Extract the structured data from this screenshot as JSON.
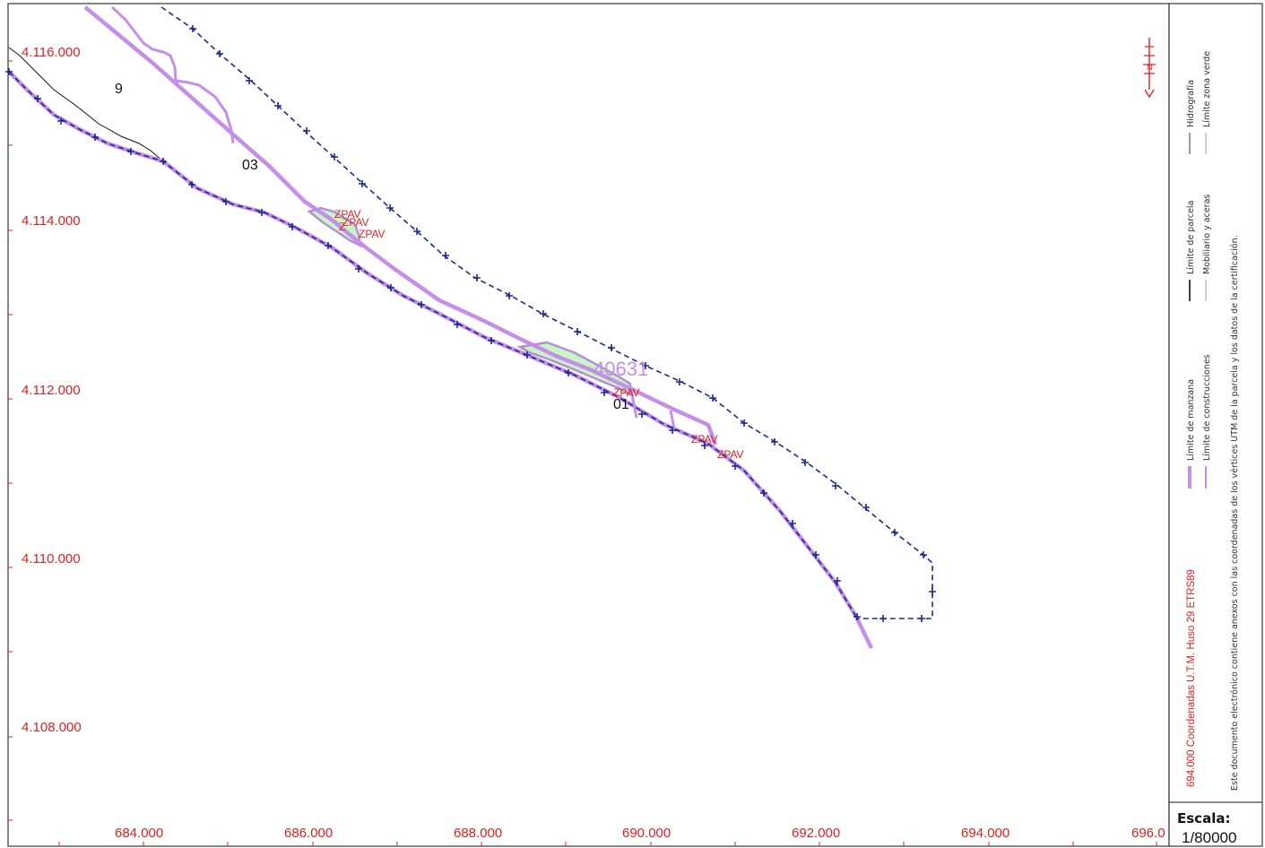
{
  "axes": {
    "y_labels": [
      "4.116.000",
      "4.114.000",
      "4.112.000",
      "4.110.000",
      "4.108.000"
    ],
    "x_labels": [
      "684.000",
      "686.000",
      "688.000",
      "690.000",
      "692.000",
      "694.000",
      "696.0"
    ]
  },
  "map_labels": {
    "zone_9": "9",
    "zone_03": "03",
    "zone_01": "01",
    "parcel_id": "40631",
    "zpav": "ZPAV",
    "zpav_partial": "Z"
  },
  "north_arrow": {
    "letter": "N",
    "icon": "north-arrow-icon"
  },
  "legend": {
    "items": [
      {
        "label": "Límite de manzana",
        "color": "#c58ee8"
      },
      {
        "label": "Límite de construcciones",
        "color": "#c58ee8"
      },
      {
        "label": "Límite de parcela",
        "color": "#000000"
      },
      {
        "label": "Mobiliario y aceras",
        "color": "#999999"
      },
      {
        "label": "Hidrografía",
        "color": "#333333"
      },
      {
        "label": "Límite zona verde",
        "color": "#999999"
      }
    ],
    "certification_note": "Este documento electrónico contiene anexos con las coordenadas de los vértices UTM de la parcela y los datos de la certificación.",
    "coordinate_note": "694.000 Coordenadas U.T.M. Huso 29 ETRS89"
  },
  "scale": {
    "title": "Escala:",
    "value": "1/80000"
  },
  "colors": {
    "axis_label": "#e02020",
    "parcel_outline": "#c58ee8",
    "boundary_dashed": "#1c2a8c",
    "green_zone": "#c8f5c4"
  }
}
